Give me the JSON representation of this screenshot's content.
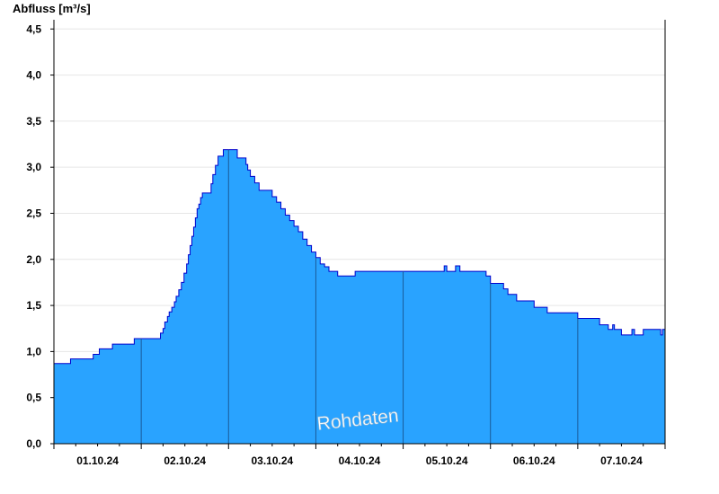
{
  "chart_data": {
    "type": "area",
    "ylabel": "Abfluss [m³/s]",
    "watermark": "Rohdaten",
    "ylim": [
      0,
      4.6
    ],
    "y_ticks": [
      "0,0",
      "0,5",
      "1,0",
      "1,5",
      "2,0",
      "2,5",
      "3,0",
      "3,5",
      "4,0",
      "4,5"
    ],
    "y_tick_values": [
      0,
      0.5,
      1.0,
      1.5,
      2.0,
      2.5,
      3.0,
      3.5,
      4.0,
      4.5
    ],
    "x_range_days": [
      0,
      7
    ],
    "x_ticks": [
      "01.10.24",
      "02.10.24",
      "03.10.24",
      "04.10.24",
      "05.10.24",
      "06.10.24",
      "07.10.24"
    ],
    "grid": true,
    "colors": {
      "fill": "#29a3ff",
      "line": "#0000cc",
      "grid": "#e6e6e6",
      "day_line": "#1a5a99"
    },
    "series": [
      {
        "x": [
          0,
          0.17,
          0.19,
          0.43,
          0.45,
          0.5,
          0.52,
          0.65,
          0.67,
          0.9,
          0.92,
          1.0,
          1.2,
          1.22,
          1.25,
          1.27,
          1.3,
          1.32,
          1.35,
          1.38,
          1.4,
          1.43,
          1.46,
          1.49,
          1.52,
          1.54,
          1.56,
          1.58,
          1.6,
          1.62,
          1.64,
          1.66,
          1.68,
          1.7,
          1.72,
          1.74,
          1.76,
          1.78,
          1.8,
          1.82,
          1.85,
          1.88,
          1.94,
          1.96,
          1.98,
          2.0,
          2.02,
          2.04,
          2.06,
          2.08,
          2.1,
          2.2,
          2.22,
          2.25,
          2.3,
          2.35,
          2.4,
          2.5,
          2.55,
          2.6,
          2.65,
          2.7,
          2.75,
          2.8,
          2.85,
          2.9,
          2.95,
          3.0,
          3.05,
          3.1,
          3.15,
          3.2,
          3.25,
          3.3,
          3.35,
          3.4,
          3.45,
          3.5,
          3.55,
          3.65,
          3.7,
          3.8,
          3.85,
          3.95,
          4.0,
          4.45,
          4.47,
          4.5,
          4.58,
          4.6,
          4.62,
          4.65,
          4.9,
          4.95,
          5.0,
          5.05,
          5.15,
          5.2,
          5.3,
          5.35,
          5.5,
          5.55,
          5.65,
          5.7,
          5.95,
          6.0,
          6.22,
          6.25,
          6.35,
          6.4,
          6.42,
          6.45,
          6.47,
          6.5,
          6.6,
          6.62,
          6.65,
          6.75,
          6.77,
          6.8,
          6.9,
          6.95,
          6.97,
          7.0
        ],
        "values": [
          0.87,
          0.87,
          0.92,
          0.92,
          0.97,
          0.97,
          1.03,
          1.03,
          1.08,
          1.08,
          1.14,
          1.14,
          1.14,
          1.2,
          1.25,
          1.32,
          1.38,
          1.43,
          1.48,
          1.54,
          1.6,
          1.67,
          1.75,
          1.85,
          1.95,
          2.05,
          2.15,
          2.25,
          2.35,
          2.45,
          2.55,
          2.6,
          2.67,
          2.72,
          2.72,
          2.72,
          2.72,
          2.72,
          2.82,
          2.92,
          3.02,
          3.12,
          3.19,
          3.19,
          3.19,
          3.19,
          3.19,
          3.19,
          3.19,
          3.19,
          3.1,
          3.03,
          2.97,
          2.9,
          2.83,
          2.75,
          2.75,
          2.68,
          2.62,
          2.55,
          2.48,
          2.42,
          2.36,
          2.3,
          2.22,
          2.15,
          2.08,
          2.02,
          1.95,
          1.92,
          1.87,
          1.87,
          1.82,
          1.82,
          1.82,
          1.82,
          1.87,
          1.87,
          1.87,
          1.87,
          1.87,
          1.87,
          1.87,
          1.87,
          1.87,
          1.87,
          1.93,
          1.87,
          1.87,
          1.93,
          1.93,
          1.87,
          1.87,
          1.82,
          1.74,
          1.74,
          1.68,
          1.62,
          1.55,
          1.55,
          1.48,
          1.48,
          1.42,
          1.42,
          1.42,
          1.36,
          1.36,
          1.29,
          1.24,
          1.29,
          1.24,
          1.24,
          1.24,
          1.18,
          1.18,
          1.24,
          1.18,
          1.24,
          1.24,
          1.24,
          1.24,
          1.18,
          1.24,
          1.24
        ]
      }
    ]
  }
}
